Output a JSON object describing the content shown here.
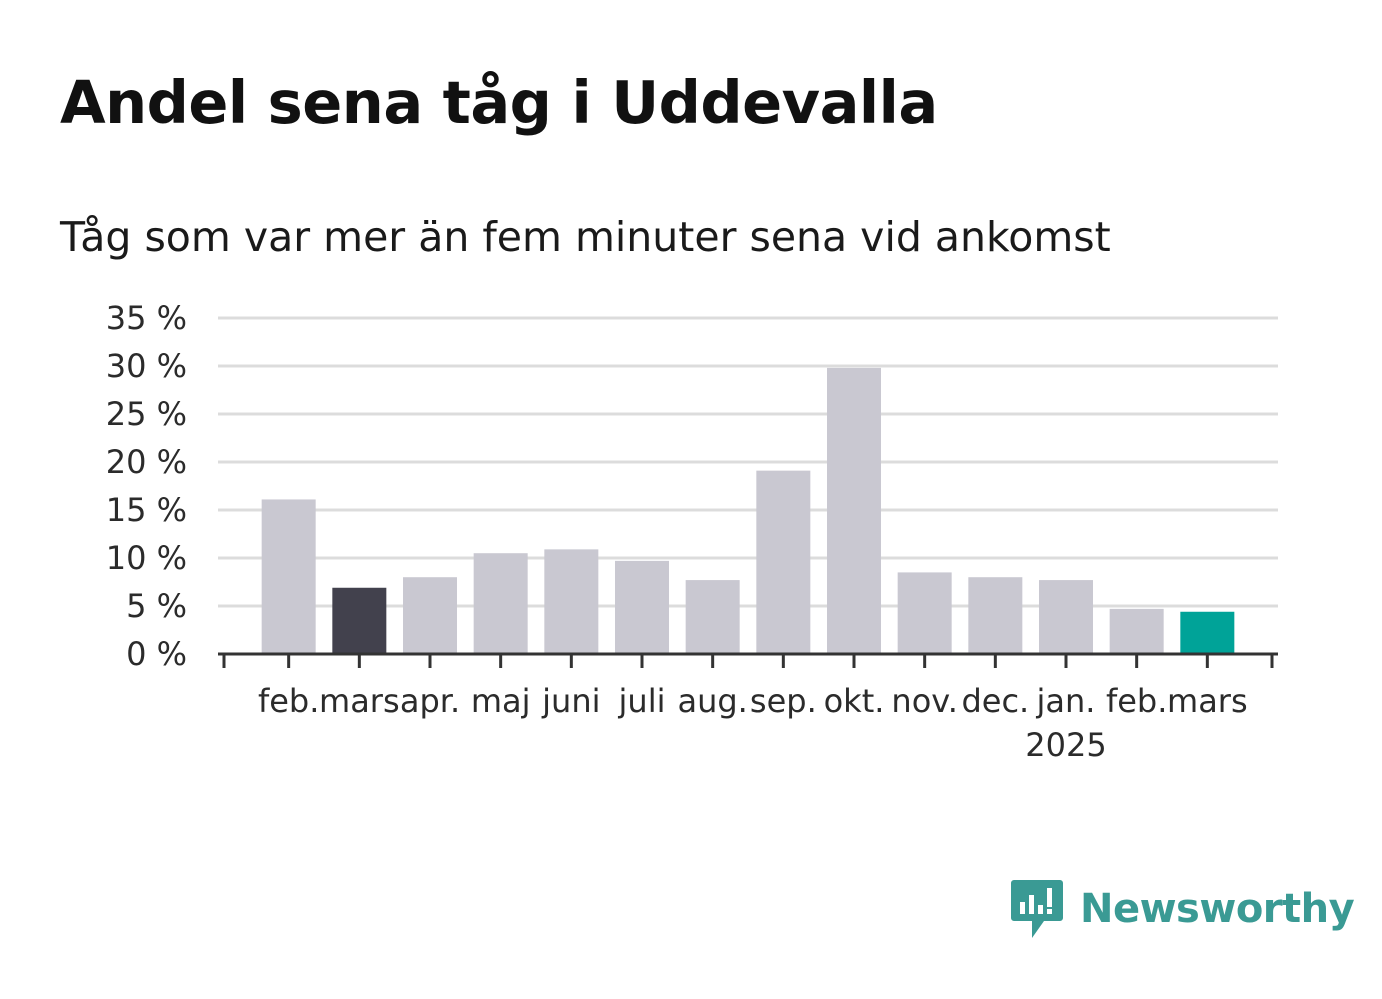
{
  "header": {
    "title": "Andel sena tåg i Uddevalla",
    "subtitle": "Tåg som var mer än fem minuter sena vid ankomst"
  },
  "brand": {
    "name": "Newsworthy",
    "color": "#3a9a94",
    "icon": "newsworthy-logo-icon"
  },
  "colors": {
    "default_bar": "#c9c8d1",
    "highlight_previous": "#42414d",
    "highlight_current": "#00a398",
    "grid": "#dcdcdc",
    "axis": "#333333"
  },
  "chart_data": {
    "type": "bar",
    "categories": [
      "feb.",
      "mars",
      "apr.",
      "maj",
      "juni",
      "juli",
      "aug.",
      "sep.",
      "okt.",
      "nov.",
      "dec.",
      "jan.",
      "feb.",
      "mars"
    ],
    "sub_labels": [
      "",
      "",
      "",
      "",
      "",
      "",
      "",
      "",
      "",
      "",
      "",
      "2025",
      "",
      ""
    ],
    "values": [
      16.1,
      6.9,
      8.0,
      10.5,
      10.9,
      9.7,
      7.7,
      19.1,
      29.8,
      8.5,
      8.0,
      7.7,
      4.7,
      4.4
    ],
    "highlight": [
      "none",
      "previous",
      "none",
      "none",
      "none",
      "none",
      "none",
      "none",
      "none",
      "none",
      "none",
      "none",
      "none",
      "current"
    ],
    "yticks": [
      "0 %",
      "5 %",
      "10 %",
      "15 %",
      "20 %",
      "25 %",
      "30 %",
      "35 %"
    ],
    "ylim": [
      0,
      35
    ],
    "grid": true,
    "title": "Andel sena tåg i Uddevalla",
    "subtitle": "Tåg som var mer än fem minuter sena vid ankomst"
  }
}
